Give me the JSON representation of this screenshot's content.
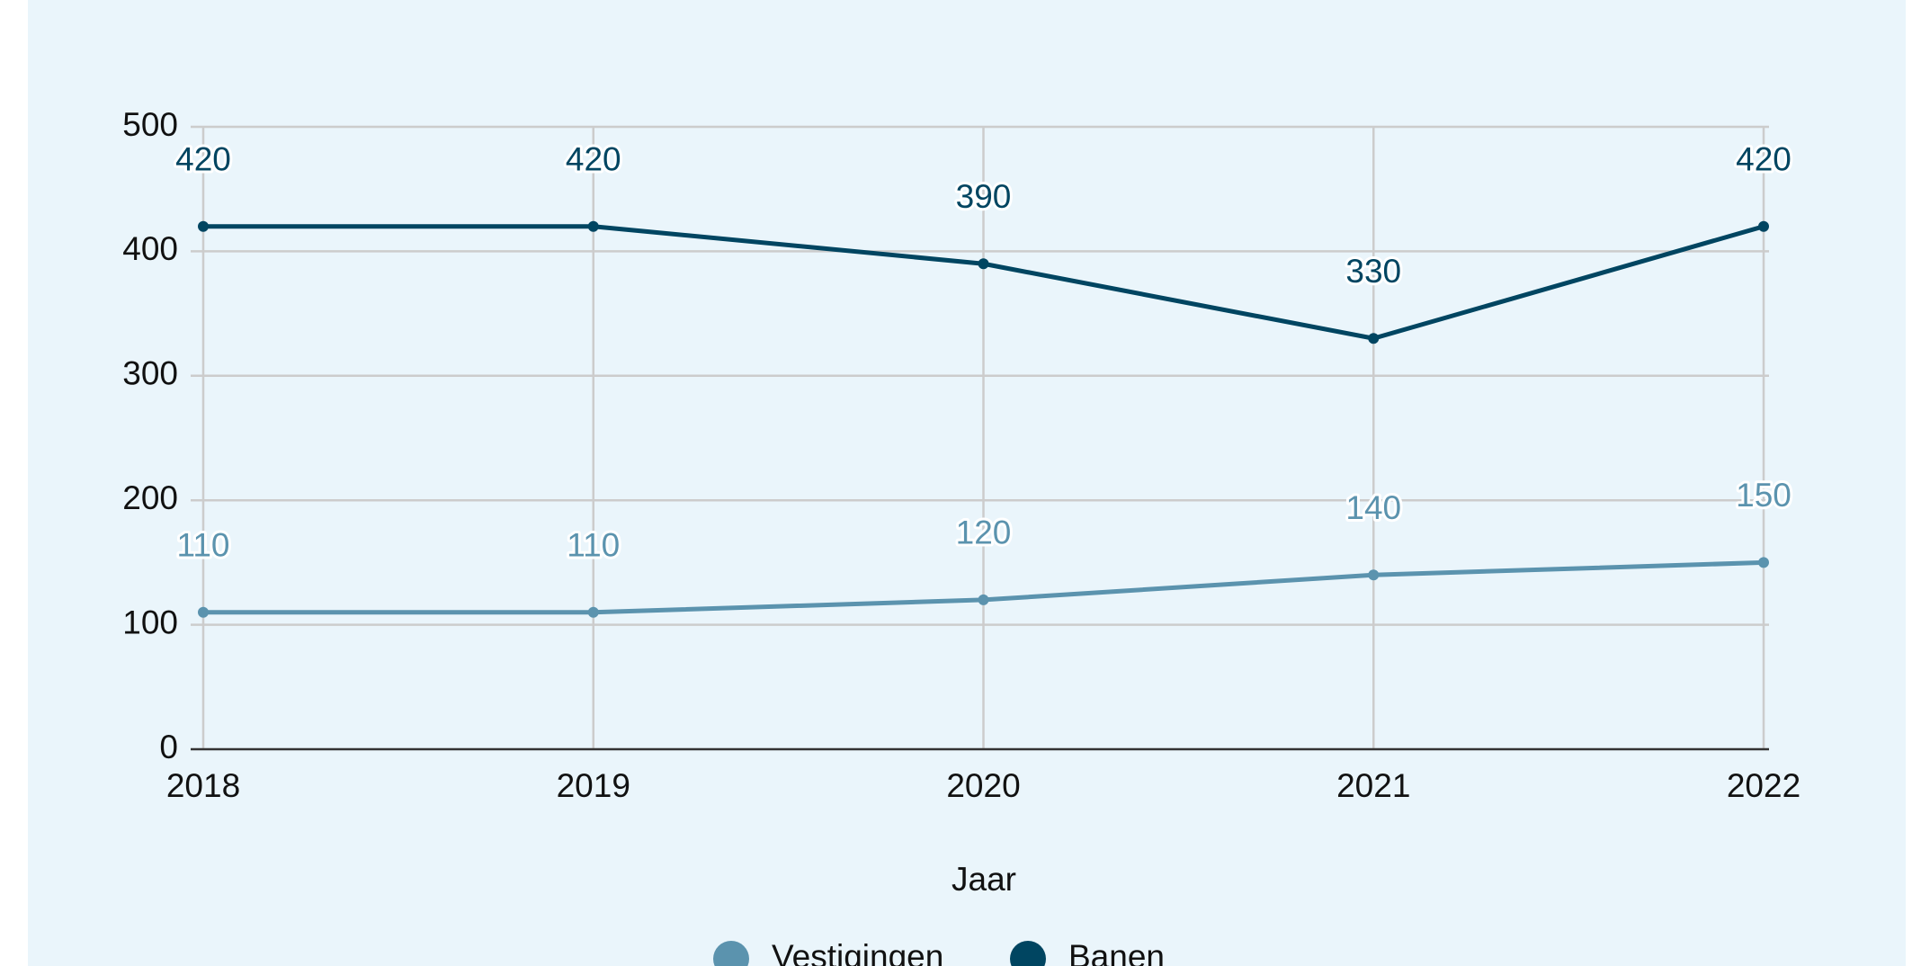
{
  "chart_data": {
    "type": "line",
    "x_label": "Jaar",
    "categories": [
      "2018",
      "2019",
      "2020",
      "2021",
      "2022"
    ],
    "series": [
      {
        "name": "Vestigingen",
        "color": "#5b93ae",
        "values": [
          110,
          110,
          120,
          140,
          150
        ]
      },
      {
        "name": "Banen",
        "color": "#004561",
        "values": [
          420,
          420,
          390,
          330,
          420
        ]
      }
    ],
    "ylim": [
      0,
      500
    ],
    "yticks": [
      0,
      100,
      200,
      300,
      400,
      500
    ],
    "grid": true
  }
}
